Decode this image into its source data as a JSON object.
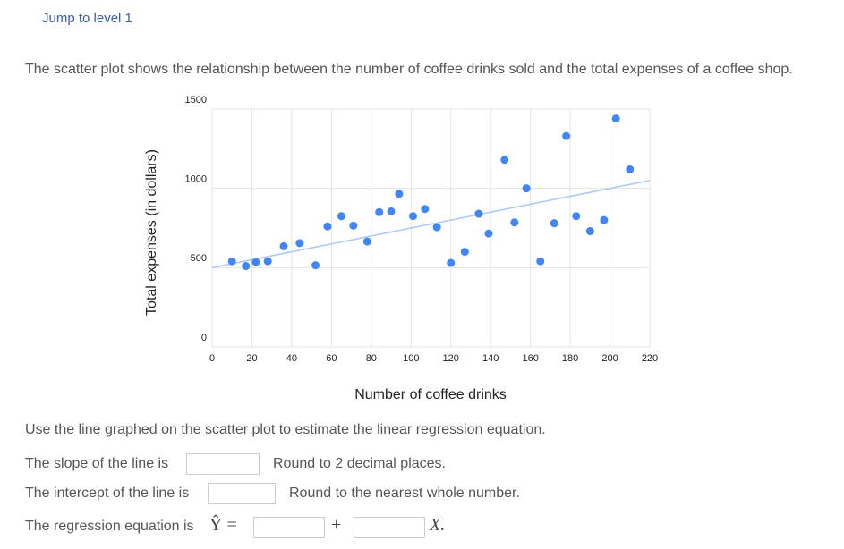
{
  "header": {
    "link": "Jump to level 1"
  },
  "intro": "The scatter plot shows the relationship between the number of coffee drinks sold and the total expenses of a coffee shop.",
  "chart_data": {
    "type": "scatter",
    "x_label": "Number of coffee drinks",
    "y_label": "Total expenses (in dollars)",
    "color": "#4285f4",
    "trendline": {
      "x": [
        0,
        220
      ],
      "y": [
        500,
        1050
      ],
      "color": "#a8c7fa"
    },
    "x": [
      10,
      17,
      22,
      28,
      36,
      44,
      52,
      58,
      65,
      71,
      78,
      84,
      90,
      94,
      101,
      107,
      113,
      120,
      127,
      134,
      139,
      147,
      152,
      158,
      165,
      172,
      178,
      183,
      190,
      197,
      203,
      210
    ],
    "values": [
      540,
      510,
      535,
      540,
      635,
      655,
      515,
      760,
      825,
      765,
      665,
      850,
      855,
      965,
      825,
      870,
      755,
      530,
      600,
      840,
      715,
      1180,
      785,
      1000,
      540,
      780,
      1330,
      825,
      730,
      800,
      1440,
      1120
    ],
    "xlim": [
      0,
      220
    ],
    "xticks": [
      0,
      20,
      40,
      60,
      80,
      100,
      120,
      140,
      160,
      180,
      200,
      220
    ],
    "ylim": [
      0,
      1500
    ],
    "yticks": [
      0,
      500,
      1000,
      1500
    ],
    "grid": true
  },
  "questions": {
    "instruction": "Use the line graphed on the scatter plot to estimate the linear regression equation.",
    "slope": {
      "label": "The slope of the line is",
      "hint": "Round to 2 decimal places."
    },
    "intercept": {
      "label": "The intercept of the line is",
      "hint": "Round to the nearest whole number."
    },
    "equation": {
      "label": "The regression equation is",
      "lhs": "Ŷ =",
      "plus": "+",
      "variable": "X."
    }
  }
}
